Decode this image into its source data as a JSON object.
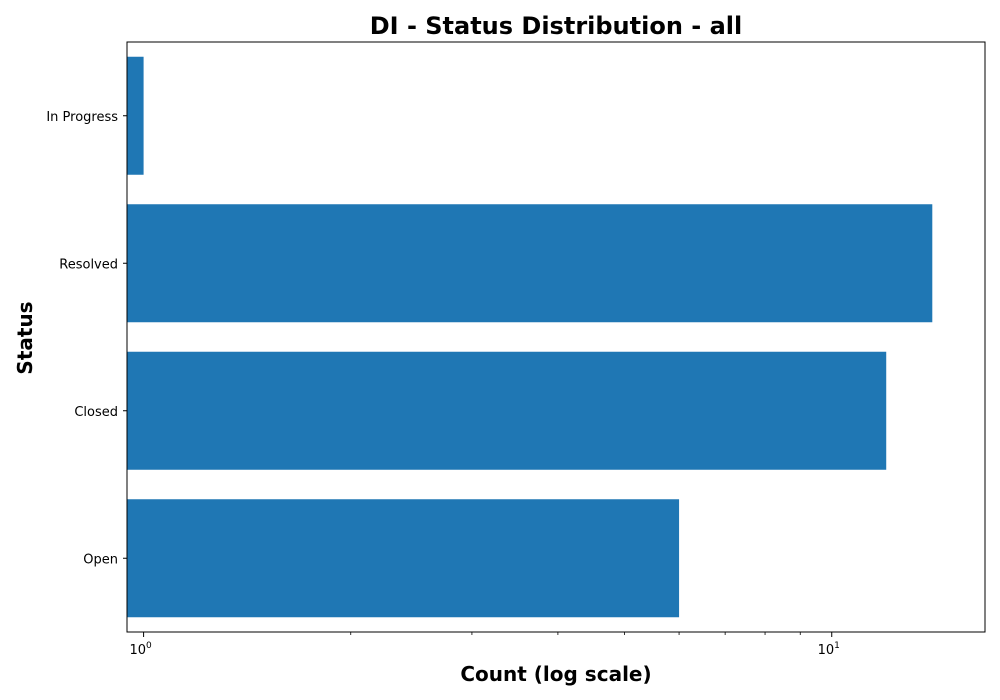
{
  "chart_data": {
    "type": "bar",
    "orientation": "horizontal",
    "title": "DI - Status Distribution - all",
    "xlabel": "Count (log scale)",
    "ylabel": "Status",
    "xscale": "log",
    "xlim": [
      0.946,
      16.7
    ],
    "x_major_ticks": [
      {
        "value": 1,
        "base": "10",
        "exp": "0"
      },
      {
        "value": 10,
        "base": "10",
        "exp": "1"
      }
    ],
    "x_minor_ticks": [
      2,
      3,
      4,
      5,
      6,
      7,
      8,
      9
    ],
    "categories": [
      "Open",
      "Closed",
      "Resolved",
      "In Progress"
    ],
    "values": [
      6,
      12,
      14,
      1
    ],
    "bar_color": "#1f77b4",
    "grid": false,
    "legend": false
  }
}
